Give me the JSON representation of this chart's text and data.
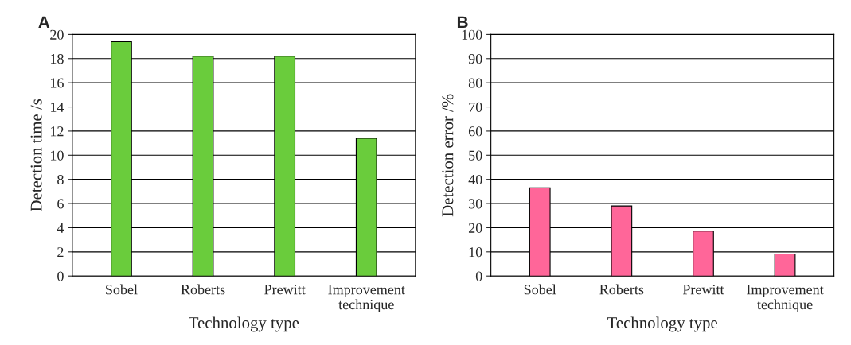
{
  "chart_data": [
    {
      "type": "bar",
      "title": "A",
      "xlabel": "Technology type",
      "ylabel": "Detection time /s",
      "categories": [
        "Sobel",
        "Roberts",
        "Prewitt",
        "Improvement\ntechnique"
      ],
      "values": [
        19.4,
        18.2,
        18.2,
        11.4
      ],
      "color": "#6acc3c",
      "ylim": [
        0,
        20
      ],
      "yticks": [
        0,
        2,
        4,
        6,
        8,
        10,
        12,
        14,
        16,
        18,
        20
      ],
      "grid": "y"
    },
    {
      "type": "bar",
      "title": "B",
      "xlabel": "Technology type",
      "ylabel": "Detection error /%",
      "categories": [
        "Sobel",
        "Roberts",
        "Prewitt",
        "Improvement\ntechnique"
      ],
      "values": [
        36.5,
        29,
        18.6,
        9.1
      ],
      "color": "#ff6699",
      "ylim": [
        0,
        100
      ],
      "yticks": [
        0,
        10,
        20,
        30,
        40,
        50,
        60,
        70,
        80,
        90,
        100
      ],
      "grid": "y"
    }
  ]
}
